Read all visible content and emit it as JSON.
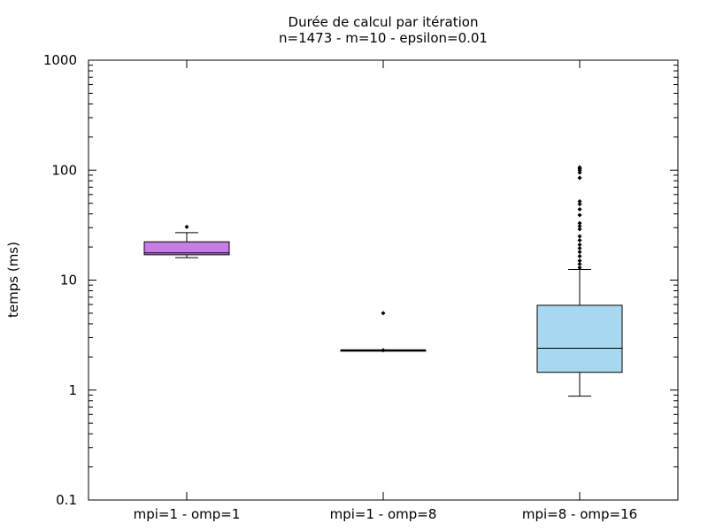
{
  "chart_data": {
    "type": "boxplot",
    "title": "Durée de calcul par itération",
    "subtitle": "n=1473 - m=10 - epsilon=0.01",
    "xlabel": "",
    "ylabel": "temps (ms)",
    "y_scale": "log",
    "ylim": [
      0.1,
      1000
    ],
    "y_ticks": [
      {
        "value": 0.1,
        "label": "0.1"
      },
      {
        "value": 1,
        "label": "1"
      },
      {
        "value": 10,
        "label": "10"
      },
      {
        "value": 100,
        "label": "100"
      },
      {
        "value": 1000,
        "label": "1000"
      }
    ],
    "grid": false,
    "categories": [
      "mpi=1 - omp=1",
      "mpi=1 - omp=8",
      "mpi=8 - omp=16"
    ],
    "series": [
      {
        "category": "mpi=1 - omp=1",
        "color": "#c77de8",
        "whisker_low": 16,
        "q1": 17,
        "median": 17.7,
        "q3": 22.3,
        "whisker_high": 27,
        "outliers": [
          30.5
        ]
      },
      {
        "category": "mpi=1 - omp=8",
        "color": "#ffffff",
        "whisker_low": 2.3,
        "q1": 2.3,
        "median": 2.3,
        "q3": 2.3,
        "whisker_high": 2.3,
        "outliers": [
          5.0,
          2.3
        ]
      },
      {
        "category": "mpi=8 - omp=16",
        "color": "#a8d8f0",
        "whisker_low": 0.88,
        "q1": 1.45,
        "median": 2.4,
        "q3": 5.9,
        "whisker_high": 12.5,
        "outliers": [
          13,
          14,
          15,
          16.5,
          18,
          19.5,
          21,
          23,
          25,
          29,
          31,
          33,
          39,
          44,
          49,
          52,
          85,
          95,
          100,
          103,
          106
        ]
      }
    ]
  }
}
